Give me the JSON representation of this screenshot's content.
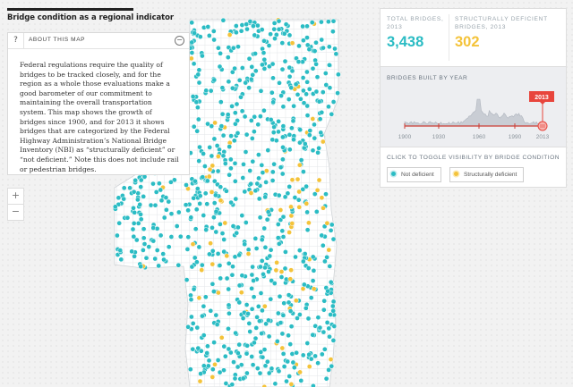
{
  "page": {
    "title": "Bridge condition as a regional indicator"
  },
  "about": {
    "title": "ABOUT THIS MAP",
    "help_glyph": "?",
    "collapse_glyph": "−",
    "body": "Federal regulations require the quality of bridges to be tracked closely, and for the region as a whole those evaluations make a good barometer of our commitment to maintaining the overall transportation system. This map shows the growth of bridges since 1900, and for 2013 it shows bridges that are categorized by the Federal Highway Administration’s National Bridge Inventory (NBI) as “structurally deficient” or “not deficient.” Note this does not include rail or pedestrian bridges."
  },
  "zoom": {
    "in": "+",
    "out": "−"
  },
  "stats": {
    "total_label": "TOTAL BRIDGES, 2013",
    "total_value": "3,438",
    "deficient_label": "STRUCTURALLY DEFICIENT BRIDGES, 2013",
    "deficient_value": "302"
  },
  "years": {
    "label": "BRIDGES BUILT BY YEAR",
    "selected_year": "2013",
    "ticks": [
      "1900",
      "1930",
      "1960",
      "1990",
      "2013"
    ]
  },
  "toggle": {
    "label": "CLICK TO TOGGLE VISIBILITY BY BRIDGE CONDITION",
    "not_deficient": "Not deficient",
    "deficient": "Structurally deficient"
  },
  "colors": {
    "not_deficient": "#2bbcc4",
    "deficient": "#f4c33a",
    "accent": "#e8453c",
    "region_fill": "#ffffff"
  }
}
